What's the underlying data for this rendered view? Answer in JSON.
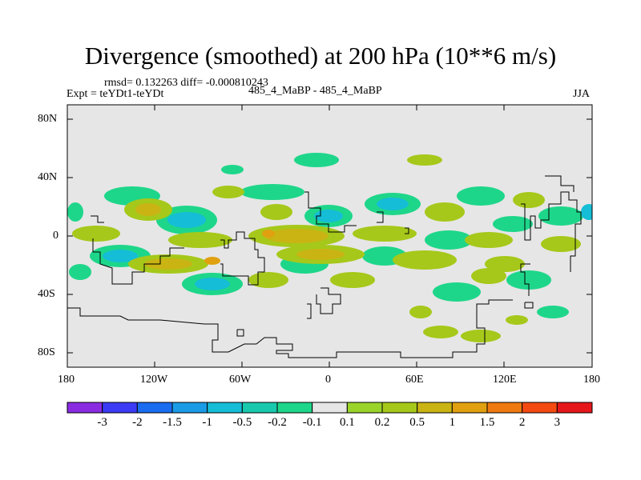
{
  "title": "Divergence (smoothed) at 200 hPa (10**6 m/s)",
  "stats_line": "rmsd= 0.132263 diff= -0.000810243",
  "expt_label": "Expt = teYDt1-teYDt",
  "case_label": "485_4_MaBP - 485_4_MaBP",
  "season": "JJA",
  "axes": {
    "lat_ticks": [
      "80N",
      "40N",
      "0",
      "40S",
      "80S"
    ],
    "lon_ticks": [
      "180",
      "120W",
      "60W",
      "0",
      "60E",
      "120E",
      "180"
    ]
  },
  "colorbar": {
    "colors": [
      "#8a2be2",
      "#3b3bf5",
      "#1a6cf0",
      "#1a9be6",
      "#15bdd6",
      "#18c9ad",
      "#1ed68a",
      "#e6e6e6",
      "#9ad42a",
      "#a6c81a",
      "#c9b414",
      "#e0a010",
      "#ee7a10",
      "#f44a12",
      "#e6161a"
    ],
    "labels": [
      "-3",
      "-2",
      "-1.5",
      "-1",
      "-0.5",
      "-0.2",
      "-0.1",
      "0.1",
      "0.2",
      "0.5",
      "1",
      "1.5",
      "2",
      "3"
    ]
  },
  "colors": {
    "background": "#e6e6e6",
    "negative_weak": "#1ed68a",
    "negative_mid": "#15bdd6",
    "positive_weak": "#a6c81a",
    "positive_mid": "#c9b414",
    "positive_strong": "#e0a010",
    "coastline": "#000000"
  }
}
